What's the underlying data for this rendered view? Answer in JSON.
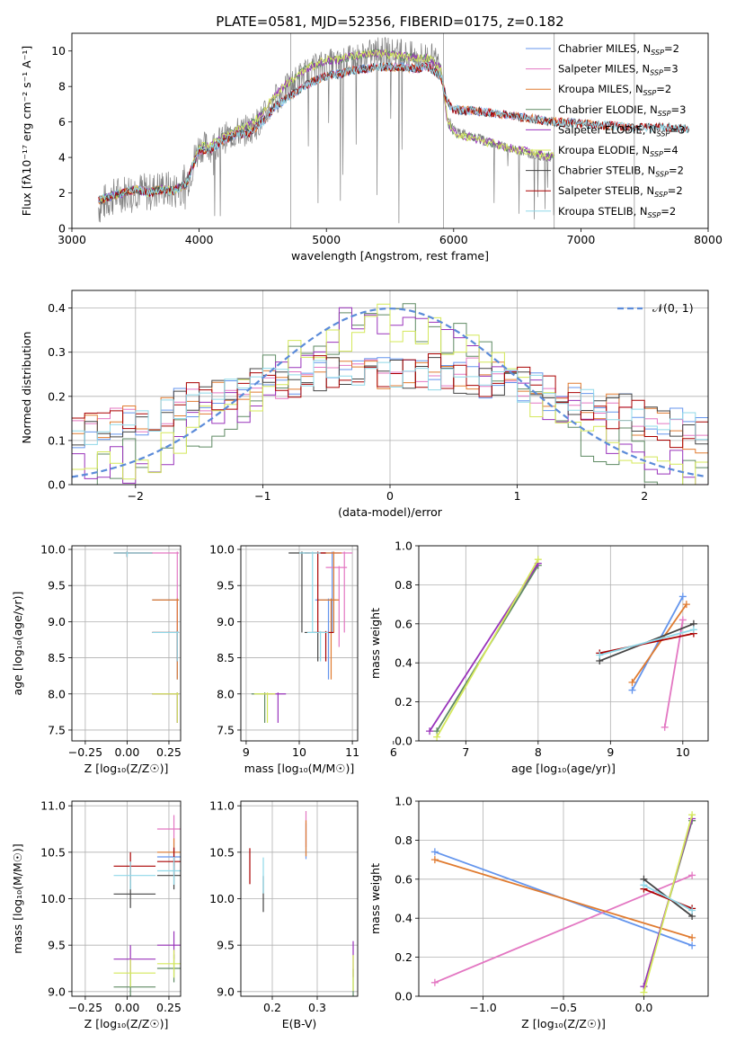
{
  "chart_data": [
    {
      "type": "line",
      "title": "PLATE=0581, MJD=52356, FIBERID=0175, z=0.182",
      "xlabel": "wavelength [Angstrom, rest frame]",
      "ylabel": "Flux [fλ10⁻¹⁷ erg cm⁻² s⁻¹ A⁻¹]",
      "xlim": [
        3000,
        8000
      ],
      "ylim": [
        0,
        11
      ],
      "xticks": [
        "3000",
        "4000",
        "5000",
        "6000",
        "7000",
        "8000"
      ],
      "yticks": [
        "0",
        "2",
        "4",
        "6",
        "8",
        "10"
      ],
      "legend": "top-right",
      "observed": {
        "color": "#808080",
        "x": [
          3210,
          3300,
          3400,
          3500,
          3600,
          3700,
          3800,
          3900,
          3950,
          4000,
          4100,
          4200,
          4300,
          4400,
          4500,
          4600,
          4700,
          4800,
          4900,
          5000,
          5100,
          5200,
          5300,
          5400,
          5500,
          5600,
          5700,
          5800,
          5900,
          5950,
          6000,
          6100,
          6200,
          6300,
          6400,
          6500,
          6600,
          6700,
          6790
        ],
        "y": [
          1.2,
          1.7,
          2.0,
          2.2,
          2.0,
          2.3,
          2.1,
          2.6,
          3.6,
          4.6,
          4.6,
          5.1,
          5.4,
          5.6,
          6.2,
          7.3,
          7.9,
          8.6,
          8.9,
          9.3,
          9.2,
          9.5,
          9.7,
          9.9,
          9.9,
          9.8,
          9.6,
          9.7,
          9.2,
          6.3,
          5.6,
          5.3,
          5.1,
          4.8,
          4.6,
          4.4,
          4.2,
          4.0,
          4.0
        ]
      },
      "series": [
        {
          "name": "Chabrier MILES, NSSP=2",
          "color": "#6495ED",
          "group": "low",
          "end": 7000
        },
        {
          "name": "Salpeter MILES, NSSP=3",
          "color": "#E377C2",
          "group": "low",
          "end": 7400
        },
        {
          "name": "Kroupa MILES, NSSP=2",
          "color": "#E07B30",
          "group": "low",
          "end": 7400
        },
        {
          "name": "Chabrier ELODIE, NSSP=3",
          "color": "#5F8A63",
          "group": "high",
          "end": 6790
        },
        {
          "name": "Salpeter ELODIE, NSSP=3",
          "color": "#9933BB",
          "group": "high",
          "end": 6790
        },
        {
          "name": "Kroupa ELODIE, NSSP=4",
          "color": "#D4E85A",
          "group": "high",
          "end": 6790
        },
        {
          "name": "Chabrier STELIB, NSSP=2",
          "color": "#444444",
          "group": "low",
          "end": 7850
        },
        {
          "name": "Salpeter STELIB, NSSP=2",
          "color": "#AA0000",
          "group": "low",
          "end": 7850
        },
        {
          "name": "Kroupa STELIB, NSSP=2",
          "color": "#8FD8E8",
          "group": "low",
          "end": 7850
        }
      ],
      "model_x": [
        3210,
        3300,
        3400,
        3500,
        3600,
        3700,
        3800,
        3900,
        3950,
        4000,
        4100,
        4200,
        4300,
        4400,
        4500,
        4600,
        4700,
        4800,
        4900,
        5000,
        5100,
        5200,
        5300,
        5400,
        5500,
        5600,
        5700,
        5800,
        5900,
        5950,
        6000,
        6200,
        6400,
        6600,
        6800,
        7000,
        7200,
        7400,
        7600,
        7850
      ],
      "model_y_low": [
        1.6,
        1.8,
        2.0,
        2.2,
        2.0,
        2.2,
        2.1,
        2.5,
        3.5,
        4.4,
        4.5,
        5.0,
        5.3,
        5.4,
        6.0,
        6.9,
        7.4,
        7.9,
        8.3,
        8.6,
        8.7,
        8.9,
        9.0,
        9.1,
        9.1,
        9.1,
        9.0,
        9.1,
        8.6,
        7.1,
        6.7,
        6.6,
        6.4,
        6.2,
        6.0,
        5.9,
        5.8,
        5.7,
        5.7,
        5.6
      ],
      "model_y_high": [
        1.6,
        1.8,
        2.0,
        2.2,
        2.0,
        2.2,
        2.1,
        2.5,
        3.6,
        4.6,
        4.7,
        5.2,
        5.6,
        5.8,
        6.5,
        7.6,
        8.2,
        8.8,
        9.2,
        9.5,
        9.5,
        9.7,
        9.8,
        9.9,
        9.8,
        9.7,
        9.6,
        9.6,
        9.0,
        6.0,
        5.4,
        5.0,
        4.6,
        4.3,
        4.0
      ]
    },
    {
      "type": "histogram",
      "xlabel": "(data-model)/error",
      "ylabel": "Normed distribution",
      "xlim": [
        -2.5,
        2.5
      ],
      "ylim": [
        0,
        0.44
      ],
      "xticks": [
        "−2",
        "−1",
        "0",
        "1",
        "2"
      ],
      "yticks": [
        "0.0",
        "0.1",
        "0.2",
        "0.3",
        "0.4"
      ],
      "legend": "top-right",
      "reference": {
        "label": "𝒩(0, 1)",
        "color": "#5B8BD9",
        "mean": 0,
        "sigma": 1
      },
      "bin_width": 0.1,
      "wide_distribution_peak": 0.26,
      "narrow_distribution_peak": 0.36
    },
    {
      "type": "scatter",
      "xlabel": "Z [log₁₀(Z/Z☉)]",
      "ylabel": "age  [log₁₀(age/yr)]",
      "xlim": [
        -0.33,
        0.32
      ],
      "ylim": [
        7.35,
        10.05
      ],
      "xticks": [
        "−0.25",
        "0.00",
        "0.25"
      ],
      "yticks": [
        "7.5",
        "8.0",
        "8.5",
        "9.0",
        "9.5",
        "10.0"
      ]
    },
    {
      "type": "scatter",
      "xlabel": "mass [log₁₀(M/M☉)]",
      "xlim": [
        8.9,
        11.1
      ],
      "ylim": [
        7.35,
        10.05
      ],
      "xticks": [
        "9",
        "10",
        "11"
      ],
      "yticks": [
        "7.5",
        "8.0",
        "8.5",
        "9.0",
        "9.5",
        "10.0"
      ]
    },
    {
      "type": "line",
      "xlabel": "age  [log₁₀(age/yr)]",
      "ylabel": "mass weight",
      "xlim": [
        6.35,
        10.35
      ],
      "ylim": [
        0,
        1
      ],
      "xticks": [
        "6",
        "7",
        "8",
        "9",
        "10"
      ],
      "yticks": [
        "0.0",
        "0.2",
        "0.4",
        "0.6",
        "0.8",
        "1.0"
      ]
    },
    {
      "type": "scatter",
      "xlabel": "Z [log₁₀(Z/Z☉)]",
      "ylabel": "mass [log₁₀(M/M☉)]",
      "xlim": [
        -0.33,
        0.32
      ],
      "ylim": [
        8.95,
        11.05
      ],
      "xticks": [
        "−0.25",
        "0.00",
        "0.25"
      ],
      "yticks": [
        "9.0",
        "9.5",
        "10.0",
        "10.5",
        "11.0"
      ]
    },
    {
      "type": "scatter",
      "xlabel": "E(B-V)",
      "xlim": [
        0.13,
        0.39
      ],
      "ylim": [
        8.95,
        11.05
      ],
      "xticks": [
        "0.2",
        "0.3"
      ],
      "yticks": [
        "9.0",
        "9.5",
        "10.0",
        "10.5",
        "11.0"
      ]
    },
    {
      "type": "line",
      "xlabel": "Z [log₁₀(Z/Z☉)]",
      "ylabel": "mass weight",
      "xlim": [
        -1.4,
        0.4
      ],
      "ylim": [
        0,
        1
      ],
      "xticks": [
        "−1.0",
        "−0.5",
        "0.0"
      ],
      "yticks": [
        "0.0",
        "0.2",
        "0.4",
        "0.6",
        "0.8",
        "1.0"
      ]
    }
  ],
  "populations": [
    {
      "color": "#6495ED",
      "Z": [
        -1.3,
        0.3
      ],
      "age": [
        10.0,
        9.3
      ],
      "w": [
        0.74,
        0.26
      ],
      "mass": [
        10.62,
        10.55
      ],
      "zerr": 0.25,
      "ebv": 0.275
    },
    {
      "color": "#E377C2",
      "Z": [
        -1.3,
        0.3
      ],
      "age": [
        9.75,
        10.0
      ],
      "w": [
        0.07,
        0.62
      ],
      "mass": [
        10.75,
        10.85
      ],
      "zerr": 0.25,
      "ebv": 0.275
    },
    {
      "color": "#E07B30",
      "Z": [
        -1.3,
        0.3
      ],
      "age": [
        10.05,
        9.3
      ],
      "w": [
        0.7,
        0.3
      ],
      "mass": [
        10.65,
        10.6
      ],
      "zerr": 0.25,
      "ebv": 0.275
    },
    {
      "color": "#5F8A63",
      "Z": [
        0.0,
        0.3
      ],
      "age": [
        6.6,
        8.0
      ],
      "w": [
        0.05,
        0.9
      ],
      "mass": [
        9.05,
        9.35
      ],
      "zerr": 0.15,
      "ebv": 0.38
    },
    {
      "color": "#9933BB",
      "Z": [
        0.0,
        0.3
      ],
      "age": [
        6.5,
        8.0
      ],
      "w": [
        0.05,
        0.91
      ],
      "mass": [
        9.35,
        9.6
      ],
      "zerr": 0.15,
      "ebv": 0.38
    },
    {
      "color": "#D4E85A",
      "Z": [
        0.0,
        0.3
      ],
      "age": [
        6.6,
        8.0
      ],
      "w": [
        0.02,
        0.93
      ],
      "mass": [
        9.2,
        9.4
      ],
      "zerr": 0.15,
      "ebv": 0.38
    },
    {
      "color": "#444444",
      "Z": [
        0.0,
        0.3
      ],
      "age": [
        10.15,
        8.85
      ],
      "w": [
        0.6,
        0.41
      ],
      "mass": [
        10.05,
        10.35
      ],
      "zerr": 0.15,
      "ebv": 0.18
    },
    {
      "color": "#AA0000",
      "Z": [
        0.0,
        0.3
      ],
      "age": [
        10.15,
        8.85
      ],
      "w": [
        0.55,
        0.45
      ],
      "mass": [
        10.35,
        10.5
      ],
      "zerr": 0.15,
      "ebv": 0.15
    },
    {
      "color": "#8FD8E8",
      "Z": [
        0.0,
        0.3
      ],
      "age": [
        10.15,
        8.85
      ],
      "w": [
        0.57,
        0.44
      ],
      "mass": [
        10.25,
        10.4
      ],
      "zerr": 0.15,
      "ebv": 0.18
    }
  ]
}
